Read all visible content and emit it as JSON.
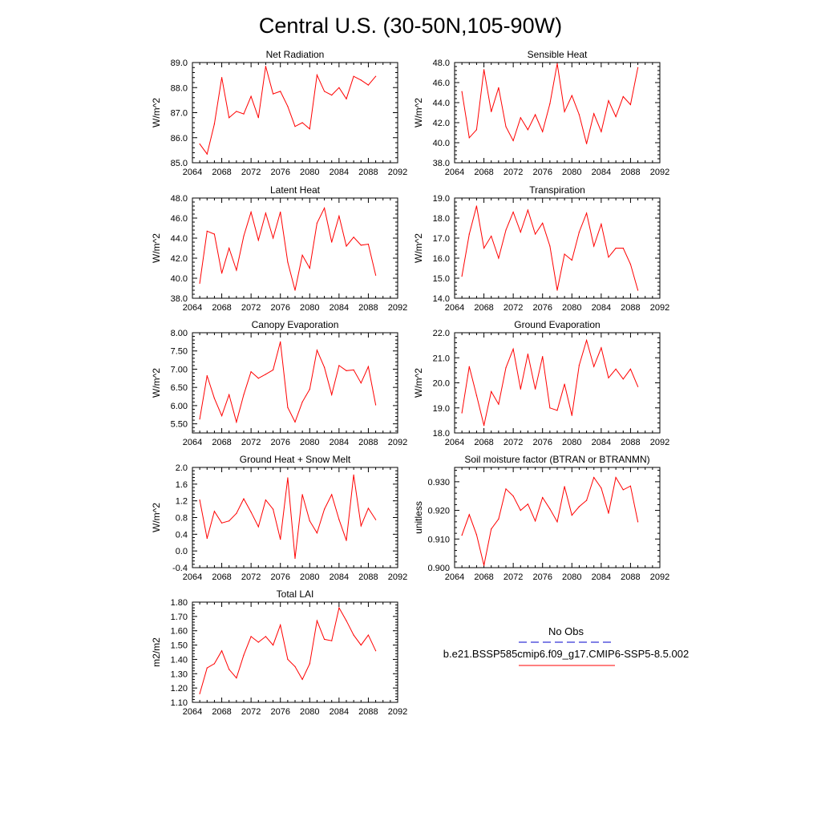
{
  "title": "Central U.S. (30-50N,105-90W)",
  "x_tick_labels": [
    "2064",
    "2068",
    "2072",
    "2076",
    "2080",
    "2084",
    "2088",
    "2092"
  ],
  "legend": {
    "entries": [
      {
        "label": "No Obs",
        "color": "#0000cc",
        "style": "dashed"
      },
      {
        "label": "b.e21.BSSP585cmip6.f09_g17.CMIP6-SSP5-8.5.002",
        "color": "#ff0000",
        "style": "solid"
      }
    ]
  },
  "chart_data": [
    {
      "type": "line",
      "title": "Net Radiation",
      "ylabel": "W/m^2",
      "xlim": [
        2064,
        2092
      ],
      "ylim": [
        85,
        89
      ],
      "yticks": [
        "85.0",
        "86.0",
        "87.0",
        "88.0",
        "89.0"
      ],
      "x": [
        2065,
        2066,
        2067,
        2068,
        2069,
        2070,
        2071,
        2072,
        2073,
        2074,
        2075,
        2076,
        2077,
        2078,
        2079,
        2080,
        2081,
        2082,
        2083,
        2084,
        2085,
        2086,
        2087,
        2088,
        2089
      ],
      "series": [
        {
          "color": "#ff0000",
          "values": [
            85.75,
            85.35,
            86.55,
            88.4,
            86.8,
            87.05,
            86.95,
            87.65,
            86.8,
            88.85,
            87.75,
            87.85,
            87.25,
            86.45,
            86.6,
            86.35,
            88.5,
            87.85,
            87.7,
            88.0,
            87.55,
            88.45,
            88.3,
            88.1,
            88.45
          ]
        }
      ]
    },
    {
      "type": "line",
      "title": "Sensible Heat",
      "ylabel": "W/m^2",
      "xlim": [
        2064,
        2092
      ],
      "ylim": [
        38,
        48
      ],
      "yticks": [
        "38.0",
        "40.0",
        "42.0",
        "44.0",
        "46.0",
        "48.0"
      ],
      "x": [
        2065,
        2066,
        2067,
        2068,
        2069,
        2070,
        2071,
        2072,
        2073,
        2074,
        2075,
        2076,
        2077,
        2078,
        2079,
        2080,
        2081,
        2082,
        2083,
        2084,
        2085,
        2086,
        2087,
        2088,
        2089
      ],
      "series": [
        {
          "color": "#ff0000",
          "values": [
            45.1,
            40.5,
            41.3,
            47.3,
            43.1,
            45.5,
            41.6,
            40.2,
            42.5,
            41.3,
            42.8,
            41.1,
            43.9,
            47.9,
            43.1,
            44.7,
            42.8,
            39.9,
            42.9,
            41.1,
            44.2,
            42.6,
            44.6,
            43.8,
            47.5
          ]
        }
      ]
    },
    {
      "type": "line",
      "title": "Latent Heat",
      "ylabel": "W/m^2",
      "xlim": [
        2064,
        2092
      ],
      "ylim": [
        38,
        48
      ],
      "yticks": [
        "38.0",
        "40.0",
        "42.0",
        "44.0",
        "46.0",
        "48.0"
      ],
      "x": [
        2065,
        2066,
        2067,
        2068,
        2069,
        2070,
        2071,
        2072,
        2073,
        2074,
        2075,
        2076,
        2077,
        2078,
        2079,
        2080,
        2081,
        2082,
        2083,
        2084,
        2085,
        2086,
        2087,
        2088,
        2089
      ],
      "series": [
        {
          "color": "#ff0000",
          "values": [
            39.5,
            44.7,
            44.4,
            40.5,
            43.0,
            40.8,
            44.2,
            46.6,
            43.8,
            46.5,
            44.0,
            46.6,
            41.6,
            38.8,
            42.3,
            41.0,
            45.5,
            47.0,
            43.6,
            46.2,
            43.2,
            44.1,
            43.3,
            43.4,
            40.3
          ]
        }
      ]
    },
    {
      "type": "line",
      "title": "Transpiration",
      "ylabel": "W/m^2",
      "xlim": [
        2064,
        2092
      ],
      "ylim": [
        14,
        19
      ],
      "yticks": [
        "14.0",
        "15.0",
        "16.0",
        "17.0",
        "18.0",
        "19.0"
      ],
      "x": [
        2065,
        2066,
        2067,
        2068,
        2069,
        2070,
        2071,
        2072,
        2073,
        2074,
        2075,
        2076,
        2077,
        2078,
        2079,
        2080,
        2081,
        2082,
        2083,
        2084,
        2085,
        2086,
        2087,
        2088,
        2089
      ],
      "series": [
        {
          "color": "#ff0000",
          "values": [
            15.1,
            17.2,
            18.6,
            16.5,
            17.1,
            16.0,
            17.4,
            18.3,
            17.3,
            18.4,
            17.2,
            17.75,
            16.6,
            14.4,
            16.2,
            15.9,
            17.3,
            18.25,
            16.6,
            17.7,
            16.05,
            16.5,
            16.5,
            15.7,
            14.4
          ]
        }
      ]
    },
    {
      "type": "line",
      "title": "Canopy Evaporation",
      "ylabel": "W/m^2",
      "xlim": [
        2064,
        2092
      ],
      "ylim": [
        5.25,
        8
      ],
      "yticks": [
        "5.50",
        "6.00",
        "6.50",
        "7.00",
        "7.50",
        "8.00"
      ],
      "x": [
        2065,
        2066,
        2067,
        2068,
        2069,
        2070,
        2071,
        2072,
        2073,
        2074,
        2075,
        2076,
        2077,
        2078,
        2079,
        2080,
        2081,
        2082,
        2083,
        2084,
        2085,
        2086,
        2087,
        2088,
        2089
      ],
      "series": [
        {
          "color": "#ff0000",
          "values": [
            5.63,
            6.82,
            6.2,
            5.72,
            6.3,
            5.55,
            6.3,
            6.93,
            6.75,
            6.86,
            6.98,
            7.75,
            5.95,
            5.55,
            6.1,
            6.45,
            7.52,
            7.05,
            6.3,
            7.1,
            6.96,
            6.98,
            6.62,
            7.07,
            6.02
          ]
        }
      ]
    },
    {
      "type": "line",
      "title": "Ground Evaporation",
      "ylabel": "W/m^2",
      "xlim": [
        2064,
        2092
      ],
      "ylim": [
        18,
        22
      ],
      "yticks": [
        "18.0",
        "19.0",
        "20.0",
        "21.0",
        "22.0"
      ],
      "x": [
        2065,
        2066,
        2067,
        2068,
        2069,
        2070,
        2071,
        2072,
        2073,
        2074,
        2075,
        2076,
        2077,
        2078,
        2079,
        2080,
        2081,
        2082,
        2083,
        2084,
        2085,
        2086,
        2087,
        2088,
        2089
      ],
      "series": [
        {
          "color": "#ff0000",
          "values": [
            18.8,
            20.65,
            19.5,
            18.3,
            19.65,
            19.15,
            20.6,
            21.35,
            19.75,
            21.15,
            19.75,
            21.05,
            19.0,
            18.9,
            19.95,
            18.7,
            20.7,
            21.7,
            20.65,
            21.4,
            20.2,
            20.55,
            20.15,
            20.55,
            19.85
          ]
        }
      ]
    },
    {
      "type": "line",
      "title": "Ground Heat + Snow Melt",
      "ylabel": "W/m^2",
      "xlim": [
        2064,
        2092
      ],
      "ylim": [
        -0.4,
        2
      ],
      "yticks": [
        "-0.4",
        "0.0",
        "0.4",
        "0.8",
        "1.2",
        "1.6",
        "2.0"
      ],
      "x": [
        2065,
        2066,
        2067,
        2068,
        2069,
        2070,
        2071,
        2072,
        2073,
        2074,
        2075,
        2076,
        2077,
        2078,
        2079,
        2080,
        2081,
        2082,
        2083,
        2084,
        2085,
        2086,
        2087,
        2088,
        2089
      ],
      "series": [
        {
          "color": "#ff0000",
          "values": [
            1.22,
            0.3,
            0.95,
            0.67,
            0.72,
            0.9,
            1.25,
            0.93,
            0.58,
            1.22,
            1.0,
            0.28,
            1.75,
            -0.18,
            1.35,
            0.72,
            0.43,
            1.0,
            1.35,
            0.75,
            0.25,
            1.82,
            0.6,
            1.02,
            0.75
          ]
        }
      ]
    },
    {
      "type": "line",
      "title": "Soil moisture factor (BTRAN or BTRANMN)",
      "ylabel": "unitless",
      "xlim": [
        2064,
        2092
      ],
      "ylim": [
        0.9,
        0.935
      ],
      "yticks": [
        "0.900",
        "0.910",
        "0.920",
        "0.930"
      ],
      "x": [
        2065,
        2066,
        2067,
        2068,
        2069,
        2070,
        2071,
        2072,
        2073,
        2074,
        2075,
        2076,
        2077,
        2078,
        2079,
        2080,
        2081,
        2082,
        2083,
        2084,
        2085,
        2086,
        2087,
        2088,
        2089
      ],
      "series": [
        {
          "color": "#ff0000",
          "values": [
            0.9113,
            0.9185,
            0.9115,
            0.9008,
            0.9135,
            0.917,
            0.9275,
            0.925,
            0.92,
            0.9222,
            0.9163,
            0.9245,
            0.9205,
            0.916,
            0.9283,
            0.9183,
            0.9213,
            0.9235,
            0.9315,
            0.9278,
            0.919,
            0.9315,
            0.9272,
            0.9285,
            0.916
          ]
        }
      ]
    },
    {
      "type": "line",
      "title": "Total LAI",
      "ylabel": "m2/m2",
      "xlim": [
        2064,
        2092
      ],
      "ylim": [
        1.1,
        1.8
      ],
      "yticks": [
        "1.10",
        "1.20",
        "1.30",
        "1.40",
        "1.50",
        "1.60",
        "1.70",
        "1.80"
      ],
      "x": [
        2065,
        2066,
        2067,
        2068,
        2069,
        2070,
        2071,
        2072,
        2073,
        2074,
        2075,
        2076,
        2077,
        2078,
        2079,
        2080,
        2081,
        2082,
        2083,
        2084,
        2085,
        2086,
        2087,
        2088,
        2089
      ],
      "series": [
        {
          "color": "#ff0000",
          "values": [
            1.16,
            1.34,
            1.37,
            1.46,
            1.33,
            1.27,
            1.43,
            1.56,
            1.52,
            1.56,
            1.5,
            1.64,
            1.4,
            1.35,
            1.26,
            1.37,
            1.67,
            1.54,
            1.53,
            1.76,
            1.67,
            1.57,
            1.5,
            1.57,
            1.46
          ]
        }
      ]
    }
  ]
}
